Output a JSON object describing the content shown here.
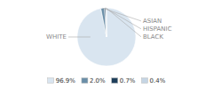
{
  "chart_data": {
    "type": "pie",
    "categories": [
      "WHITE",
      "ASIAN",
      "HISPANIC",
      "BLACK"
    ],
    "values": [
      96.9,
      2.0,
      0.7,
      0.4
    ],
    "value_labels": [
      "96.9%",
      "2.0%",
      "0.7%",
      "0.4%"
    ],
    "colors": [
      "#d9e5f0",
      "#6b8fa8",
      "#1f3f5b",
      "#c5d5e4"
    ],
    "legend": "bottom"
  }
}
